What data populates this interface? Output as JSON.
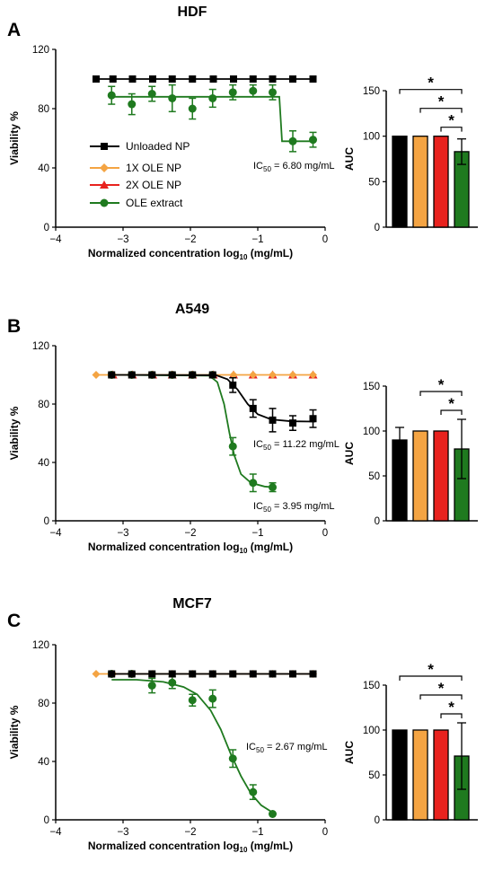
{
  "figure": {
    "panels": [
      {
        "letter": "A",
        "title": "HDF"
      },
      {
        "letter": "B",
        "title": "A549"
      },
      {
        "letter": "C",
        "title": "MCF7"
      }
    ]
  },
  "colors": {
    "unloaded": "#000000",
    "ole1x": "#f4a443",
    "ole2x": "#e8221e",
    "extract": "#1f7a1f"
  },
  "chart_data": [
    {
      "panel": "A",
      "title": "HDF",
      "type": "line",
      "xlabel": "Normalized concentration log10 (mg/mL)",
      "ylabel": "Viability %",
      "xlim": [
        -4,
        0
      ],
      "ylim": [
        0,
        120
      ],
      "xticks": [
        "−4",
        "−3",
        "−2",
        "−1",
        "0"
      ],
      "yticks": [
        "0",
        "40",
        "80",
        "120"
      ],
      "legend": [
        "Unloaded NP",
        "1X OLE NP",
        "2X OLE NP",
        "OLE extract"
      ],
      "series": [
        {
          "name": "Unloaded NP",
          "marker": "square",
          "x": [
            -3.4,
            -3.15,
            -2.86,
            -2.56,
            -2.27,
            -1.97,
            -1.66,
            -1.36,
            -1.07,
            -0.78,
            -0.48,
            -0.18
          ],
          "y": [
            100,
            100,
            100,
            100,
            100,
            100,
            100,
            100,
            100,
            100,
            100,
            100
          ],
          "err": [
            0,
            0,
            0,
            0,
            0,
            0,
            0,
            0,
            0,
            0,
            0,
            0
          ],
          "fit": [
            [
              -3.4,
              100
            ],
            [
              -0.15,
              100
            ]
          ]
        },
        {
          "name": "1X OLE NP",
          "marker": "diamond",
          "x": [],
          "y": [],
          "err": [],
          "fit": []
        },
        {
          "name": "2X OLE NP",
          "marker": "triangle",
          "x": [],
          "y": [],
          "err": [],
          "fit": []
        },
        {
          "name": "OLE extract",
          "marker": "circle",
          "x": [
            -3.17,
            -2.87,
            -2.57,
            -2.27,
            -1.97,
            -1.67,
            -1.37,
            -1.07,
            -0.78,
            -0.48,
            -0.18
          ],
          "y": [
            89,
            83,
            90,
            87,
            80,
            87,
            91,
            92,
            91,
            58,
            59
          ],
          "err": [
            6,
            7,
            5,
            9,
            7,
            6,
            5,
            4,
            5,
            7,
            5
          ],
          "fit": [
            [
              -3.17,
              88
            ],
            [
              -0.68,
              88
            ],
            [
              -0.64,
              58
            ],
            [
              -0.15,
              58
            ]
          ]
        }
      ],
      "ic50": "IC50= 6.80 mg/mL"
    },
    {
      "panel": "A",
      "type": "bar",
      "ylabel": "AUC",
      "ylim": [
        0,
        150
      ],
      "yticks": [
        "0",
        "50",
        "100",
        "150"
      ],
      "categories": [
        "Unloaded NP",
        "1X OLE NP",
        "2X OLE NP",
        "OLE extract"
      ],
      "values": [
        100,
        100,
        100,
        83
      ],
      "err": [
        0,
        0,
        0,
        14
      ],
      "significance": [
        [
          "Unloaded NP",
          "OLE extract"
        ],
        [
          "1X OLE NP",
          "OLE extract"
        ],
        [
          "2X OLE NP",
          "OLE extract"
        ]
      ],
      "star": "*"
    },
    {
      "panel": "B",
      "title": "A549",
      "type": "line",
      "xlabel": "Normalized concentration log10 (mg/mL)",
      "ylabel": "Viability %",
      "xlim": [
        -4,
        0
      ],
      "ylim": [
        0,
        120
      ],
      "xticks": [
        "−4",
        "−3",
        "−2",
        "−1",
        "0"
      ],
      "yticks": [
        "0",
        "40",
        "80",
        "120"
      ],
      "series": [
        {
          "name": "Unloaded NP",
          "marker": "square",
          "x": [
            -3.17,
            -2.87,
            -2.57,
            -2.27,
            -1.97,
            -1.67,
            -1.37,
            -1.07,
            -0.78,
            -0.48,
            -0.18
          ],
          "y": [
            100,
            100,
            100,
            100,
            100,
            100,
            93,
            77,
            69,
            67,
            70
          ],
          "err": [
            0,
            0,
            0,
            0,
            0,
            0,
            5,
            6,
            8,
            5,
            6
          ],
          "fit": [
            [
              -3.17,
              100
            ],
            [
              -1.62,
              99.8
            ],
            [
              -1.45,
              97
            ],
            [
              -1.3,
              90
            ],
            [
              -1.15,
              80
            ],
            [
              -1.0,
              73
            ],
            [
              -0.8,
              69.5
            ],
            [
              -0.5,
              68.2
            ],
            [
              -0.15,
              68
            ]
          ]
        },
        {
          "name": "1X OLE NP",
          "marker": "diamond",
          "x": [
            -3.4,
            -3.15,
            -2.86,
            -2.56,
            -2.27,
            -1.97,
            -1.66,
            -1.36,
            -1.07,
            -0.78,
            -0.48,
            -0.18
          ],
          "y": [
            100,
            100,
            100,
            100,
            100,
            100,
            100,
            100,
            100,
            100,
            100,
            100
          ],
          "err": [
            0,
            0,
            0,
            0,
            0,
            0,
            0,
            0,
            0,
            0,
            0,
            0
          ],
          "fit": [
            [
              -3.4,
              100
            ],
            [
              -0.15,
              100
            ]
          ]
        },
        {
          "name": "2X OLE NP",
          "marker": "triangle",
          "x": [
            -3.15,
            -2.86,
            -2.56,
            -2.27,
            -1.97,
            -1.66,
            -1.36,
            -1.07,
            -0.78,
            -0.48,
            -0.18
          ],
          "y": [
            100,
            100,
            100,
            100,
            100,
            100,
            100,
            100,
            100,
            100,
            100
          ],
          "err": [
            0,
            0,
            0,
            0,
            0,
            0,
            0,
            0,
            0,
            0,
            0
          ],
          "fit": []
        },
        {
          "name": "OLE extract",
          "marker": "circle",
          "x": [
            -3.17,
            -2.87,
            -2.57,
            -2.27,
            -1.97,
            -1.67,
            -1.37,
            -1.07,
            -0.78
          ],
          "y": [
            100,
            100,
            100,
            100,
            100,
            100,
            51,
            26,
            23
          ],
          "err": [
            0,
            0,
            0,
            0,
            0,
            0,
            6,
            6,
            3
          ],
          "fit": [
            [
              -3.17,
              100
            ],
            [
              -1.72,
              99.5
            ],
            [
              -1.6,
              95
            ],
            [
              -1.5,
              80
            ],
            [
              -1.42,
              60
            ],
            [
              -1.35,
              45
            ],
            [
              -1.25,
              32
            ],
            [
              -1.1,
              26
            ],
            [
              -0.9,
              23.5
            ],
            [
              -0.78,
              23
            ]
          ]
        }
      ],
      "ic50": [
        "IC50= 11.22 mg/mL",
        "IC50= 3.95 mg/mL"
      ]
    },
    {
      "panel": "B",
      "type": "bar",
      "ylabel": "AUC",
      "ylim": [
        0,
        150
      ],
      "yticks": [
        "0",
        "50",
        "100",
        "150"
      ],
      "categories": [
        "Unloaded NP",
        "1X OLE NP",
        "2X OLE NP",
        "OLE extract"
      ],
      "values": [
        90,
        100,
        100,
        80
      ],
      "err": [
        14,
        0,
        0,
        33
      ],
      "significance": [
        [
          "1X OLE NP",
          "OLE extract"
        ],
        [
          "2X OLE NP",
          "OLE extract"
        ]
      ],
      "star": "*"
    },
    {
      "panel": "C",
      "title": "MCF7",
      "type": "line",
      "xlabel": "Normalized concentration log10 (mg/mL)",
      "ylabel": "Viability %",
      "xlim": [
        -4,
        0
      ],
      "ylim": [
        0,
        120
      ],
      "xticks": [
        "−4",
        "−3",
        "−2",
        "−1",
        "0"
      ],
      "yticks": [
        "0",
        "40",
        "80",
        "120"
      ],
      "series": [
        {
          "name": "Unloaded NP",
          "marker": "square",
          "x": [
            -3.17,
            -2.87,
            -2.57,
            -2.27,
            -1.97,
            -1.67,
            -1.37,
            -1.07,
            -0.78,
            -0.48,
            -0.18
          ],
          "y": [
            100,
            100,
            100,
            100,
            100,
            100,
            100,
            100,
            100,
            100,
            100
          ],
          "err": [
            0,
            0,
            0,
            0,
            0,
            0,
            0,
            0,
            0,
            0,
            0
          ],
          "fit": [
            [
              -3.17,
              100
            ],
            [
              -0.15,
              100
            ]
          ]
        },
        {
          "name": "1X OLE NP",
          "marker": "diamond",
          "x": [
            -3.4,
            -3.15,
            -2.86,
            -2.56,
            -2.27,
            -1.97,
            -1.66,
            -1.36,
            -1.07,
            -0.78,
            -0.48,
            -0.18
          ],
          "y": [
            100,
            100,
            100,
            100,
            100,
            100,
            100,
            100,
            100,
            100,
            100,
            100
          ],
          "err": [
            0,
            0,
            0,
            0,
            0,
            0,
            0,
            0,
            0,
            0,
            0,
            0
          ],
          "fit": [
            [
              -3.4,
              100
            ],
            [
              -0.15,
              100
            ]
          ]
        },
        {
          "name": "2X OLE NP",
          "marker": "triangle",
          "x": [],
          "y": [],
          "err": [],
          "fit": []
        },
        {
          "name": "OLE extract",
          "marker": "circle",
          "x": [
            -3.17,
            -2.87,
            -2.57,
            -2.27,
            -1.97,
            -1.67,
            -1.37,
            -1.07,
            -0.78
          ],
          "y": [
            100,
            100,
            92,
            94,
            82,
            83,
            42,
            19,
            4
          ],
          "err": [
            0,
            0,
            5,
            4,
            4,
            6,
            6,
            5,
            0
          ],
          "fit": [
            [
              -3.17,
              96
            ],
            [
              -2.8,
              96
            ],
            [
              -2.4,
              94.5
            ],
            [
              -2.1,
              91
            ],
            [
              -1.9,
              86
            ],
            [
              -1.7,
              75
            ],
            [
              -1.55,
              62
            ],
            [
              -1.4,
              45
            ],
            [
              -1.25,
              30
            ],
            [
              -1.1,
              18
            ],
            [
              -0.95,
              10
            ],
            [
              -0.78,
              5
            ]
          ]
        }
      ],
      "ic50": "IC50= 2.67 mg/mL"
    },
    {
      "panel": "C",
      "type": "bar",
      "ylabel": "AUC",
      "ylim": [
        0,
        150
      ],
      "yticks": [
        "0",
        "50",
        "100",
        "150"
      ],
      "categories": [
        "Unloaded NP",
        "1X OLE NP",
        "2X OLE NP",
        "OLE extract"
      ],
      "values": [
        100,
        100,
        100,
        71
      ],
      "err": [
        0,
        0,
        0,
        37
      ],
      "significance": [
        [
          "Unloaded NP",
          "OLE extract"
        ],
        [
          "1X OLE NP",
          "OLE extract"
        ],
        [
          "2X OLE NP",
          "OLE extract"
        ]
      ],
      "star": "*"
    }
  ]
}
